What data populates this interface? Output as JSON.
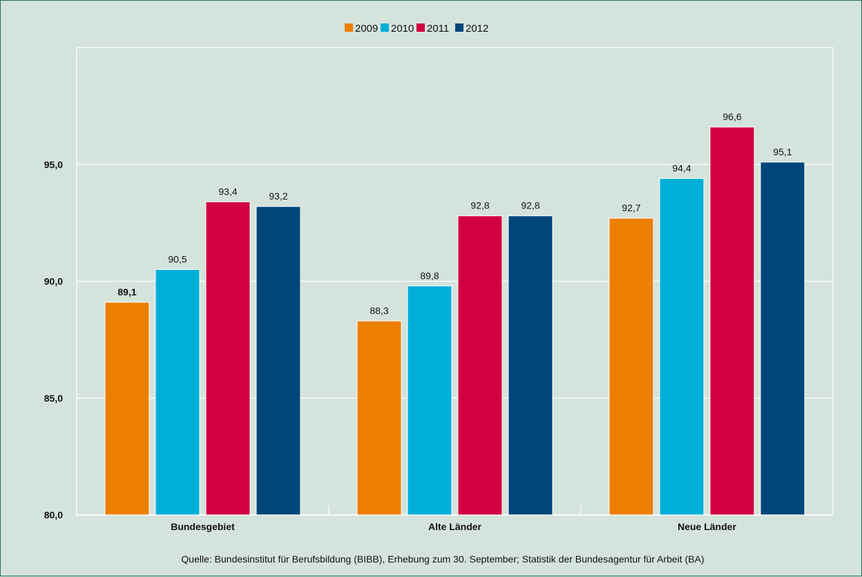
{
  "chart_data": {
    "type": "bar",
    "categories": [
      "Bundesgebiet",
      "Alte Länder",
      "Neue Länder"
    ],
    "series": [
      {
        "name": "2009",
        "color": "#ed7f00",
        "values": [
          89.1,
          88.3,
          92.7
        ],
        "labels": [
          "89,1",
          "88,3",
          "92,7"
        ]
      },
      {
        "name": "2010",
        "color": "#00afd7",
        "values": [
          90.5,
          89.8,
          94.4
        ],
        "labels": [
          "90,5",
          "89,8",
          "94,4"
        ]
      },
      {
        "name": "2011",
        "color": "#d20041",
        "values": [
          93.4,
          92.8,
          96.6
        ],
        "labels": [
          "93,4",
          "92,8",
          "96,6"
        ]
      },
      {
        "name": "2012",
        "color": "#004678",
        "values": [
          93.2,
          92.8,
          95.1
        ],
        "labels": [
          "93,2",
          "92,8",
          "95,1"
        ]
      }
    ],
    "ylim": [
      80,
      100
    ],
    "yticks": [
      80,
      85,
      90,
      95
    ],
    "ytick_labels": [
      "80,0",
      "85,0",
      "90,0",
      "95,0"
    ],
    "grid": true,
    "legend_position": "top-center",
    "source": "Quelle: Bundesinstitut für Berufsbildung (BIBB), Erhebung zum 30. September; Statistik der Bundesagentur für Arbeit (BA)"
  }
}
